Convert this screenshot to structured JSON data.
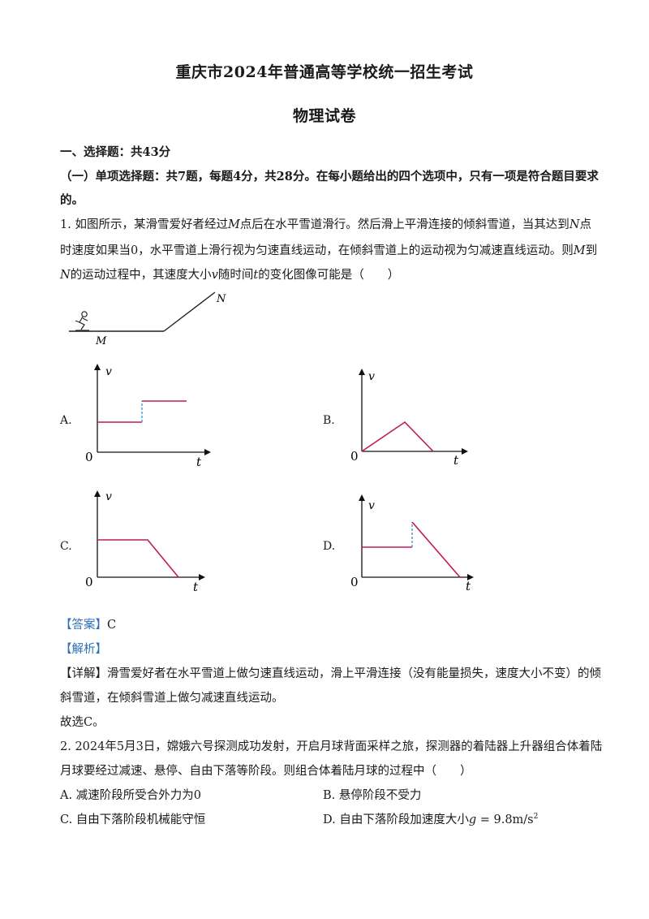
{
  "title": "重庆市2024年普通高等学校统一招生考试",
  "subtitle": "物理试卷",
  "section1": "一、选择题：共43分",
  "section1_sub_a": "（一）单项选择题：共7题，每题4分，共28分。在每小题给出的四个选项中，只有一项是符合题目要求",
  "section1_sub_b": "的。",
  "q1": {
    "line1_a": "1. 如图所示，某滑雪爱好者经过",
    "M": "M",
    "line1_b": "点后在水平雪道滑行。然后滑上平滑连接的倾斜雪道，当其达到",
    "N": "N",
    "line1_c": "点",
    "line2_a": "时速度如果当",
    "zero": "0",
    "line2_b": "，水平雪道上滑行视为匀速直线运动，在倾斜雪道上的运动视为匀减速直线运动。则",
    "line2_c": "到",
    "line3_a": "的运动过程中，其速度大小",
    "v": "v",
    "line3_b": "随时间",
    "t": "t",
    "line3_c": "的变化图像可能是（　　）",
    "fig_M": "M",
    "fig_N": "N",
    "options": [
      {
        "label": "A.",
        "ylabel": "v",
        "xlabel": "t",
        "origin": "0"
      },
      {
        "label": "B.",
        "ylabel": "v",
        "xlabel": "t",
        "origin": "0"
      },
      {
        "label": "C.",
        "ylabel": "v",
        "xlabel": "t",
        "origin": "0"
      },
      {
        "label": "D.",
        "ylabel": "v",
        "xlabel": "t",
        "origin": "0"
      }
    ],
    "answer_tag": "【答案】",
    "answer": "C",
    "analysis_tag": "【解析】",
    "detail_tag": "【详解】",
    "detail_1": "滑雪爱好者在水平雪道上做匀速直线运动，滑上平滑连接（没有能量损失，速度大小不变）的倾",
    "detail_2": "斜雪道，在倾斜雪道上做匀减速直线运动。",
    "conclusion": "故选C。"
  },
  "q2": {
    "line1": "2. 2024年5月3日，嫦娥六号探测成功发射，开启月球背面采样之旅，探测器的着陆器上升器组合体着陆",
    "line2": "月球要经过减速、悬停、自由下落等阶段。则组合体着陆月球的过程中（　　）",
    "opt_a": "A. 减速阶段所受合外力为0",
    "opt_b": "B. 悬停阶段不受力",
    "opt_c": "C. 自由下落阶段机械能守恒",
    "opt_d_a": "D. 自由下落阶段加速度大小",
    "opt_d_g": "g",
    "opt_d_b": " =  9.8m/s",
    "opt_d_sup": "2"
  },
  "colors": {
    "graph_line": "#c2185b",
    "dash": "#3a8fd8",
    "tag": "#2e6fb7"
  }
}
